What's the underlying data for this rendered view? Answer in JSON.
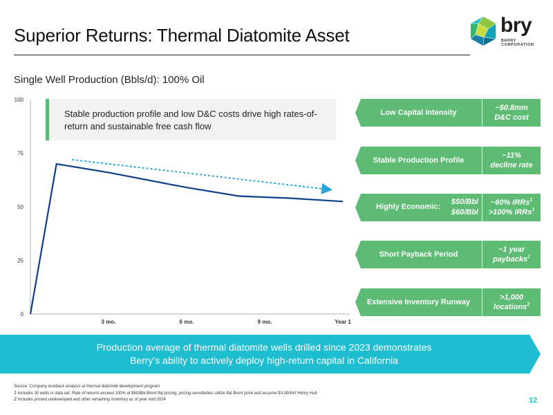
{
  "slide": {
    "title": "Superior Returns: Thermal Diatomite Asset",
    "subtitle": "Single Well Production (Bbls/d): 100% Oil",
    "page_number": "12"
  },
  "logo": {
    "word": "bry",
    "sub_line1": "BERRY",
    "sub_line2": "CORPORATION",
    "icon": "geodesic-polyhedron-icon"
  },
  "callout": {
    "text": "Stable production profile and low D&C costs drive high rates-of-return and sustainable free cash flow"
  },
  "metrics": [
    {
      "label": "Low Capital Intensity",
      "value_line1": "~$0.8mm",
      "value_line2": "D&C cost"
    },
    {
      "label": "Stable Production Profile",
      "value_line1": "~11%",
      "value_line2": "decline rate"
    },
    {
      "label": "Highly Economic:",
      "price1": "$50/Bbl",
      "price2": "$60/Bbl",
      "value_line1": "~60% IRRs",
      "value_line2": ">100% IRRs",
      "footnote": "1"
    },
    {
      "label": "Short Payback Period",
      "value_line1": "~1 year",
      "value_line2": "paybacks",
      "footnote": "1"
    },
    {
      "label": "Extensive Inventory Runway",
      "value_line1": ">1,000",
      "value_line2": "locations",
      "footnote": "2"
    }
  ],
  "banner": {
    "line1": "Production average of thermal diatomite wells drilled since 2023 demonstrates",
    "line2": "Berry’s ability to actively deploy high-return capital in California"
  },
  "footnotes": {
    "source": "Source: Company lookback analysis at thermal diatomite development program",
    "note1": "Includes 30 wells in data set. Rate of returns exceed 100% at $60/Bbl Brent flat pricing; pricing sensitivities utilize flat Brent price and assume $3.00/Mcf Henry Hub",
    "note2": "Includes proved undeveloped and other remaining inventory as of year end 2024"
  },
  "colors": {
    "green": "#5dbb73",
    "teal": "#1fbdd0",
    "line": "#0e3e8a",
    "trend": "#2aa5d8"
  },
  "chart_data": {
    "type": "line",
    "ylim": [
      0,
      100
    ],
    "yticks": [
      0,
      25,
      50,
      75,
      100
    ],
    "x_tick_labels": [
      "3 mo.",
      "6 mo.",
      "9 mo.",
      "Year 1"
    ],
    "x_tick_positions": [
      3,
      6,
      9,
      12
    ],
    "xlim": [
      0,
      12
    ],
    "series": [
      {
        "x": [
          0,
          1,
          3,
          6,
          8,
          10,
          12
        ],
        "y": [
          0,
          70,
          66,
          59,
          55,
          54,
          52.5
        ]
      }
    ],
    "trend_arrow": {
      "x": [
        1.6,
        11.5
      ],
      "y": [
        72,
        58
      ]
    },
    "grid": false,
    "legend": "none"
  }
}
